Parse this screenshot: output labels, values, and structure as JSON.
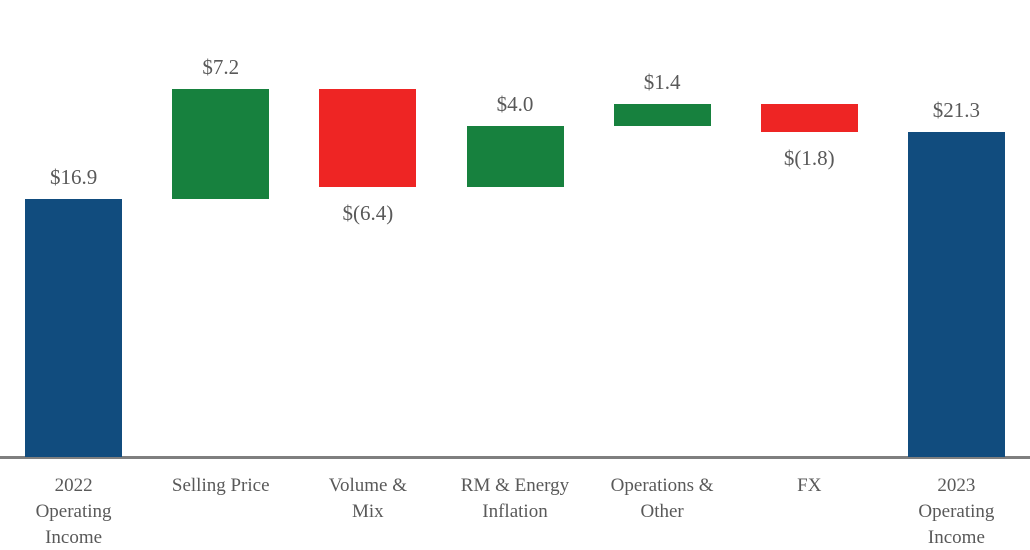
{
  "chart_data": {
    "type": "waterfall",
    "title": "",
    "categories": [
      "2022 Operating Income",
      "Selling Price",
      "Volume & Mix",
      "RM & Energy Inflation",
      "Operations & Other",
      "FX",
      "2023 Operating Income"
    ],
    "category_lines": [
      [
        "2022",
        "Operating",
        "Income"
      ],
      [
        "Selling Price"
      ],
      [
        "Volume &",
        "Mix"
      ],
      [
        "RM & Energy",
        "Inflation"
      ],
      [
        "Operations &",
        "Other"
      ],
      [
        "FX"
      ],
      [
        "2023",
        "Operating",
        "Income"
      ]
    ],
    "values": [
      16.9,
      7.2,
      -6.4,
      4.0,
      1.4,
      -1.8,
      21.3
    ],
    "labels": [
      "$16.9",
      "$7.2",
      "$(6.4)",
      "$4.0",
      "$1.4",
      "$(1.8)",
      "$21.3"
    ],
    "bar_roles": [
      "total",
      "increase",
      "decrease",
      "increase",
      "increase",
      "decrease",
      "total"
    ],
    "running_totals": [
      16.9,
      24.1,
      17.7,
      21.7,
      23.1,
      21.3,
      21.3
    ],
    "baseline_value": 0,
    "grid": false,
    "legend": false,
    "colors": {
      "total": "#114C7E",
      "increase": "#17813E",
      "decrease": "#EE2524",
      "axis": "#7F7F7F",
      "label_text": "#595959"
    }
  }
}
